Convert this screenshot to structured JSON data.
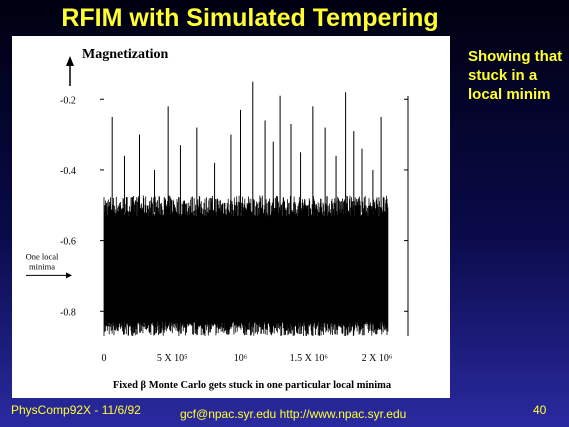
{
  "slide": {
    "title": "RFIM with Simulated Tempering",
    "side_note": "Showing that stuck in a local minim",
    "footer_left": "PhysComp92X - 11/6/92",
    "footer_center": "gcf@npac.syr.edu   http://www.npac.syr.edu",
    "page_number": "40"
  },
  "chart_data": {
    "type": "line",
    "title": "Magnetization",
    "xlabel": "Fixed β Monte Carlo gets stuck in one particular local minima",
    "ylabel": "",
    "x_ticks": [
      {
        "value": 0,
        "label": "0"
      },
      {
        "value": 500000,
        "label": "5 X 10⁵"
      },
      {
        "value": 1000000,
        "label": "10⁶"
      },
      {
        "value": 1500000,
        "label": "1.5 X 10⁶"
      },
      {
        "value": 2000000,
        "label": "2 X 10⁶"
      }
    ],
    "y_ticks": [
      {
        "value": -0.2,
        "label": "-0.2"
      },
      {
        "value": -0.4,
        "label": "-0.4"
      },
      {
        "value": -0.6,
        "label": "-0.6"
      },
      {
        "value": -0.8,
        "label": "-0.8"
      }
    ],
    "xlim": [
      0,
      2000000
    ],
    "ylim": [
      -0.87,
      -0.12
    ],
    "band_low": -0.85,
    "band_high": -0.52,
    "band_center": -0.67,
    "spikes": [
      {
        "x": 60000,
        "y": -0.25
      },
      {
        "x": 150000,
        "y": -0.36
      },
      {
        "x": 260000,
        "y": -0.3
      },
      {
        "x": 370000,
        "y": -0.4
      },
      {
        "x": 470000,
        "y": -0.22
      },
      {
        "x": 560000,
        "y": -0.33
      },
      {
        "x": 680000,
        "y": -0.28
      },
      {
        "x": 810000,
        "y": -0.38
      },
      {
        "x": 930000,
        "y": -0.3
      },
      {
        "x": 1000000,
        "y": -0.23
      },
      {
        "x": 1090000,
        "y": -0.15
      },
      {
        "x": 1180000,
        "y": -0.26
      },
      {
        "x": 1240000,
        "y": -0.32
      },
      {
        "x": 1290000,
        "y": -0.19
      },
      {
        "x": 1370000,
        "y": -0.27
      },
      {
        "x": 1440000,
        "y": -0.35
      },
      {
        "x": 1530000,
        "y": -0.22
      },
      {
        "x": 1620000,
        "y": -0.28
      },
      {
        "x": 1700000,
        "y": -0.36
      },
      {
        "x": 1770000,
        "y": -0.18
      },
      {
        "x": 1830000,
        "y": -0.29
      },
      {
        "x": 1890000,
        "y": -0.34
      },
      {
        "x": 1970000,
        "y": -0.4
      },
      {
        "x": 2030000,
        "y": -0.25
      }
    ],
    "annotation": {
      "text": "One local minima",
      "y": -0.67
    }
  }
}
